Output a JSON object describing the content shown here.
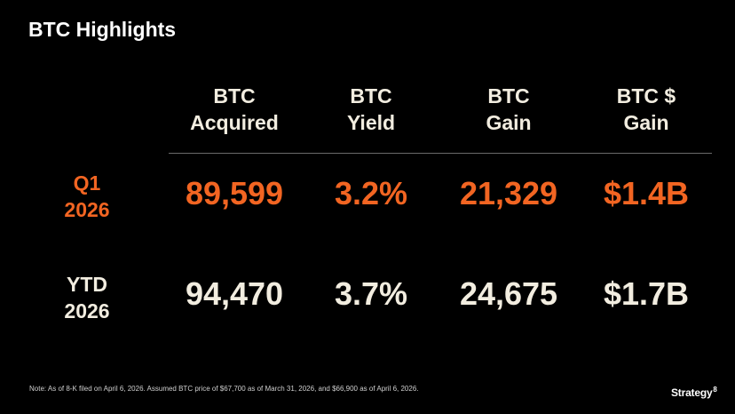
{
  "title": "BTC Highlights",
  "columns": [
    {
      "line1": "BTC",
      "line2": "Acquired"
    },
    {
      "line1": "BTC",
      "line2": "Yield"
    },
    {
      "line1": "BTC",
      "line2": "Gain"
    },
    {
      "line1": "BTC $",
      "line2": "Gain"
    }
  ],
  "rows": [
    {
      "label_line1": "Q1",
      "label_line2": "2026",
      "values": [
        "89,599",
        "3.2%",
        "21,329",
        "$1.4B"
      ]
    },
    {
      "label_line1": "YTD",
      "label_line2": "2026",
      "values": [
        "94,470",
        "3.7%",
        "24,675",
        "$1.7B"
      ]
    }
  ],
  "footnote": "Note: As of 8-K filed on April 6, 2026. Assumed BTC price of $67,700 as of March 31, 2026, and $66,900 as of April 6, 2026.",
  "logo": {
    "text": "Strategy",
    "mark": "8"
  },
  "colors": {
    "accent": "#f26522",
    "text": "#f2ede0",
    "background": "#000000"
  }
}
